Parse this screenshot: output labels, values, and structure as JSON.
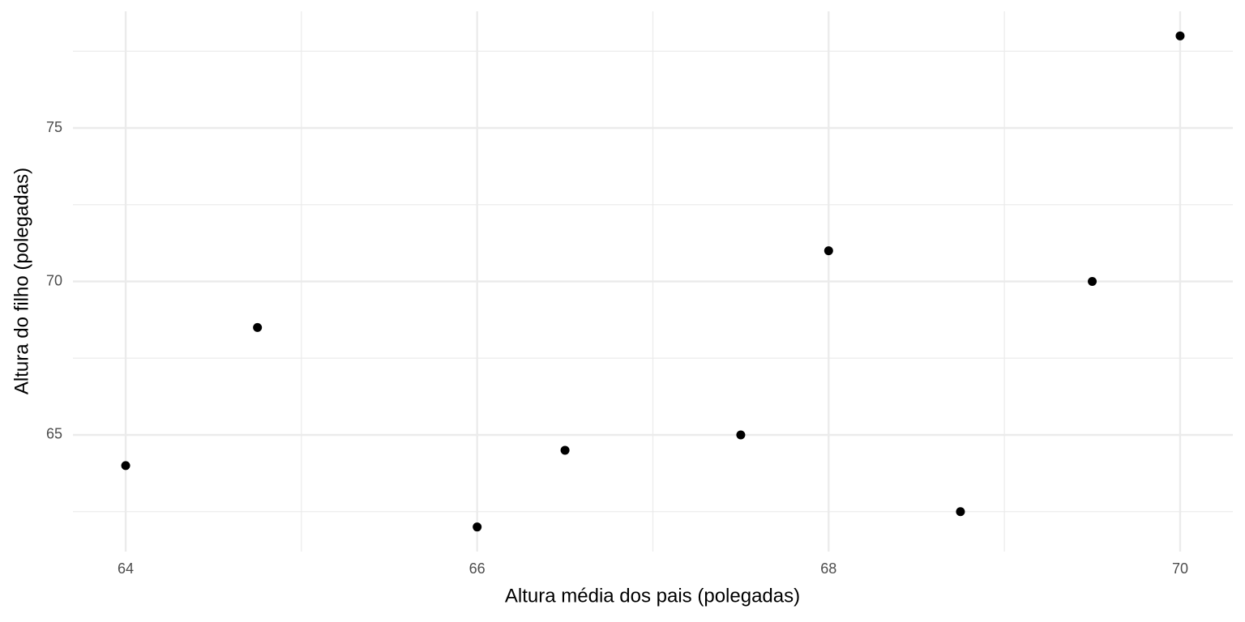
{
  "chart_data": {
    "type": "scatter",
    "x_label": "Altura média dos pais (polegadas)",
    "y_label": "Altura do filho (polegadas)",
    "x": [
      64,
      64.75,
      66,
      66.5,
      67.5,
      68,
      68.75,
      69.5,
      70
    ],
    "series": [
      {
        "color": "#000000",
        "values": [
          64,
          68.5,
          62,
          64.5,
          65,
          71,
          62.5,
          70,
          78
        ]
      }
    ],
    "xlim": [
      63.7,
      70.3
    ],
    "ylim": [
      61.2,
      78.8
    ],
    "xticks": [
      64,
      66,
      68,
      70
    ],
    "yticks": [
      65,
      70,
      75
    ],
    "x_minor_grid": [
      65,
      67,
      69
    ],
    "y_minor_grid": [
      62.5,
      67.5,
      72.5,
      77.5
    ],
    "grid": true
  }
}
